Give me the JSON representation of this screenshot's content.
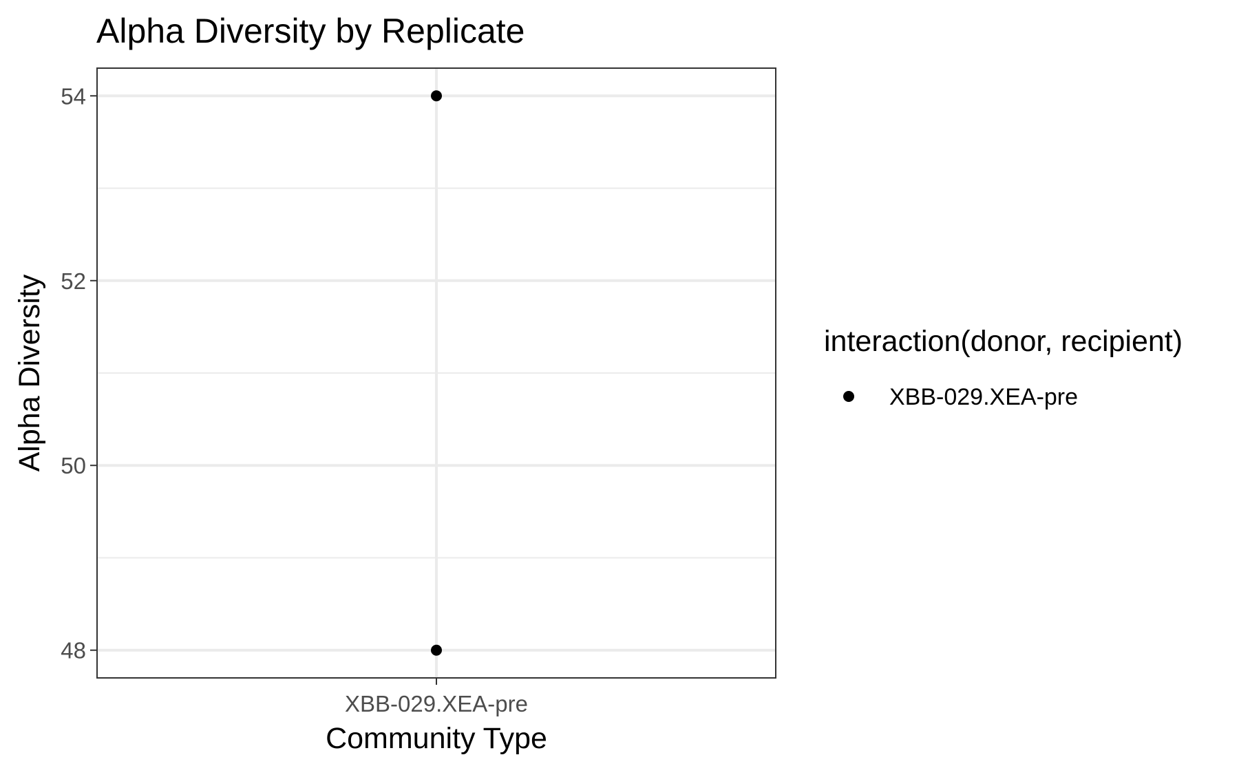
{
  "chart_data": {
    "type": "scatter",
    "title": "Alpha Diversity by Replicate",
    "xlabel": "Community Type",
    "ylabel": "Alpha Diversity",
    "categories": [
      "XBB-029.XEA-pre"
    ],
    "ylim": [
      47.7,
      54.3
    ],
    "y_major_ticks": [
      48,
      50,
      52,
      54
    ],
    "y_minor_ticks": [
      49,
      51,
      53
    ],
    "grid": true,
    "series": [
      {
        "name": "XBB-029.XEA-pre",
        "color": "#000000",
        "points": [
          {
            "x": "XBB-029.XEA-pre",
            "y": 54
          },
          {
            "x": "XBB-029.XEA-pre",
            "y": 48
          }
        ]
      }
    ],
    "legend": {
      "title": "interaction(donor, recipient)",
      "position": "right"
    }
  }
}
